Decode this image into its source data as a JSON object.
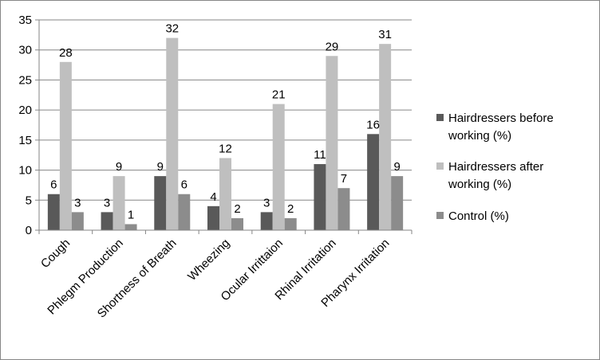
{
  "chart_data": {
    "type": "bar",
    "categories": [
      "Cough",
      "Phlegm Production",
      "Shortness of Breath",
      "Wheezing",
      "Ocular Irrittaion",
      "Rhinal Irritation",
      "Pharynx Irritation"
    ],
    "series": [
      {
        "name": "Hairdressers before working (%)",
        "legend_lines": [
          "Hairdressers before",
          "working (%)"
        ],
        "color": "#595959",
        "values": [
          6,
          3,
          9,
          4,
          3,
          11,
          16
        ]
      },
      {
        "name": "Hairdressers after working (%)",
        "legend_lines": [
          "Hairdressers after",
          "working (%)"
        ],
        "color": "#bfbfbf",
        "values": [
          28,
          9,
          32,
          12,
          21,
          29,
          31
        ]
      },
      {
        "name": "Control (%)",
        "legend_lines": [
          "Control (%)"
        ],
        "color": "#8c8c8c",
        "values": [
          3,
          1,
          6,
          2,
          2,
          7,
          9
        ]
      }
    ],
    "ylim": [
      0,
      35
    ],
    "yticks": [
      0,
      5,
      10,
      15,
      20,
      25,
      30,
      35
    ],
    "grid": true,
    "legend_position": "right",
    "data_labels": true
  }
}
